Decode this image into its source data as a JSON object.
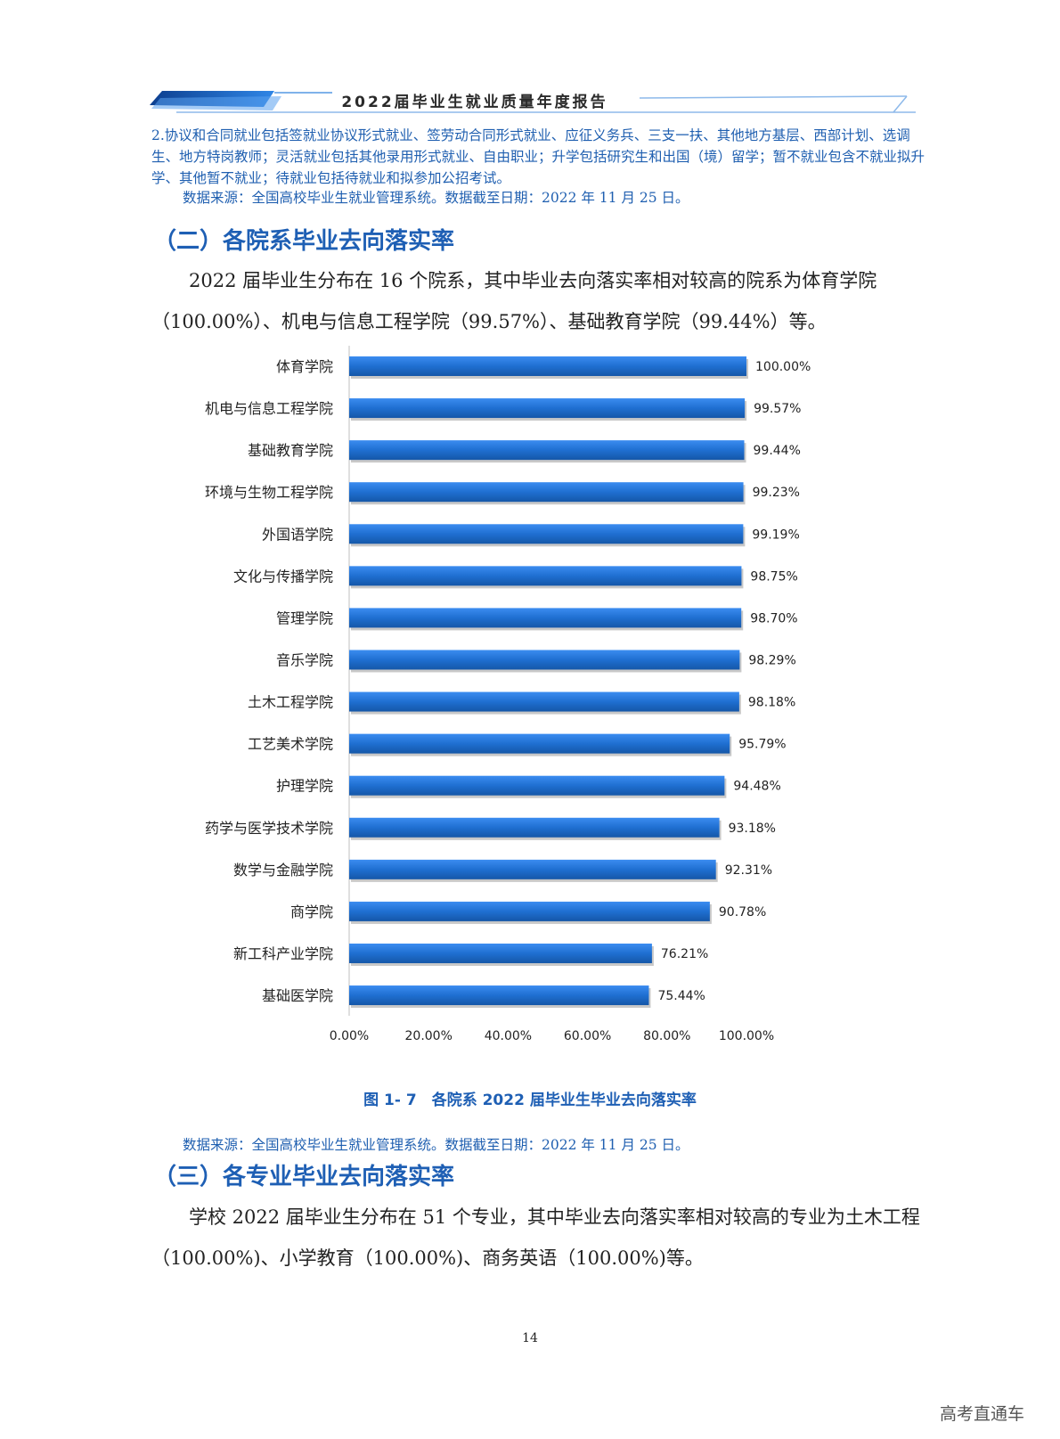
{
  "header": {
    "title": "2022届毕业生就业质量年度报告"
  },
  "notes": {
    "definition": "2.协议和合同就业包括签就业协议形式就业、签劳动合同形式就业、应征义务兵、三支一扶、其他地方基层、西部计划、选调生、地方特岗教师；灵活就业包括其他录用形式就业、自由职业；升学包括研究生和出国（境）留学；暂不就业包含不就业拟升学、其他暂不就业；待就业包括待就业和拟参加公招考试。",
    "source1": "数据来源：全国高校毕业生就业管理系统。数据截至日期：2022 年 11 月 25 日。",
    "source2": "数据来源：全国高校毕业生就业管理系统。数据截至日期：2022 年 11 月 25 日。"
  },
  "section2": {
    "title": "（二）各院系毕业去向落实率",
    "paragraph": "2022 届毕业生分布在 16 个院系，其中毕业去向落实率相对较高的院系为体育学院（100.00%）、机电与信息工程学院（99.57%）、基础教育学院（99.44%）等。"
  },
  "figure": {
    "caption": "图 1- 7　各院系 2022 届毕业生毕业去向落实率"
  },
  "section3": {
    "title": "（三）各专业毕业去向落实率",
    "paragraph": "学校 2022 届毕业生分布在 51 个专业，其中毕业去向落实率相对较高的专业为土木工程（100.00%)、小学教育（100.00%)、商务英语（100.00%)等。"
  },
  "page_number": "14",
  "watermark": "高考直通车",
  "colors": {
    "bar": "#1f6fd1",
    "bar_dark": "#1557a8",
    "accent": "#1e5fb4"
  },
  "chart_data": {
    "type": "bar",
    "orientation": "horizontal",
    "title": "各院系 2022 届毕业生毕业去向落实率",
    "categories": [
      "体育学院",
      "机电与信息工程学院",
      "基础教育学院",
      "环境与生物工程学院",
      "外国语学院",
      "文化与传播学院",
      "管理学院",
      "音乐学院",
      "土木工程学院",
      "工艺美术学院",
      "护理学院",
      "药学与医学技术学院",
      "数学与金融学院",
      "商学院",
      "新工科产业学院",
      "基础医学院"
    ],
    "values": [
      100.0,
      99.57,
      99.44,
      99.23,
      99.19,
      98.75,
      98.7,
      98.29,
      98.18,
      95.79,
      94.48,
      93.18,
      92.31,
      90.78,
      76.21,
      75.44
    ],
    "value_labels": [
      "100.00%",
      "99.57%",
      "99.44%",
      "99.23%",
      "99.19%",
      "98.75%",
      "98.70%",
      "98.29%",
      "98.18%",
      "95.79%",
      "94.48%",
      "93.18%",
      "92.31%",
      "90.78%",
      "76.21%",
      "75.44%"
    ],
    "xlim": [
      0,
      100
    ],
    "xticks": [
      "0.00%",
      "20.00%",
      "40.00%",
      "60.00%",
      "80.00%",
      "100.00%"
    ],
    "xlabel": "",
    "ylabel": "",
    "grid": false
  }
}
